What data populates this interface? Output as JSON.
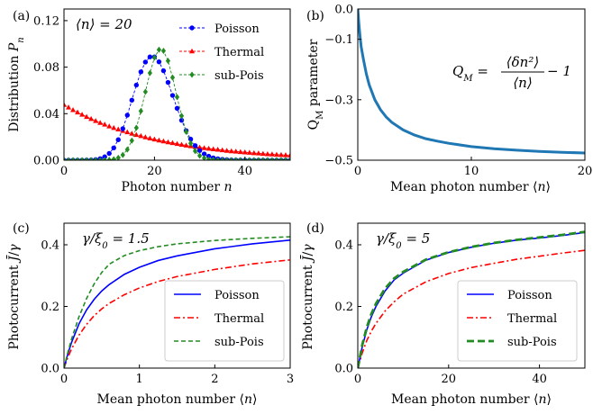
{
  "chart_data": [
    {
      "panel": "(a)",
      "type": "line",
      "xlabel": "Photon number n",
      "ylabel": "Distribution P_n",
      "xlim": [
        0,
        50
      ],
      "ylim": [
        0,
        0.13
      ],
      "xticks": [
        "0",
        "20",
        "40"
      ],
      "yticks": [
        "0.00",
        "0.04",
        "0.08",
        "0.12"
      ],
      "annotation": "⟨n⟩ = 20",
      "legend_position": "top-right",
      "mean_n": 20,
      "x": [
        0,
        1,
        2,
        3,
        4,
        5,
        6,
        7,
        8,
        9,
        10,
        11,
        12,
        13,
        14,
        15,
        16,
        17,
        18,
        19,
        20,
        21,
        22,
        23,
        24,
        25,
        26,
        27,
        28,
        29,
        30,
        31,
        32,
        33,
        34,
        35,
        36,
        37,
        38,
        39,
        40,
        41,
        42,
        43,
        44,
        45,
        46,
        47,
        48,
        49,
        50
      ],
      "series": [
        {
          "name": "Poisson",
          "color": "#0000ff",
          "marker": "circle",
          "line": "dashed",
          "values": [
            0,
            0,
            0,
            0,
            0,
            0.0001,
            0.0002,
            0.0005,
            0.0013,
            0.0029,
            0.0058,
            0.0106,
            0.0176,
            0.0271,
            0.0387,
            0.0516,
            0.0646,
            0.076,
            0.0844,
            0.0888,
            0.0888,
            0.0846,
            0.0769,
            0.0669,
            0.0557,
            0.0446,
            0.0343,
            0.0254,
            0.0181,
            0.0125,
            0.0083,
            0.0054,
            0.0034,
            0.002,
            0.0012,
            0.0007,
            0.0004,
            0.0002,
            0.0001,
            0.0001,
            0,
            0,
            0,
            0,
            0,
            0,
            0,
            0,
            0,
            0,
            0
          ]
        },
        {
          "name": "Thermal",
          "color": "#ff0000",
          "marker": "triangle",
          "line": "dashed",
          "values": [
            0.0476,
            0.0454,
            0.0432,
            0.0411,
            0.0392,
            0.0373,
            0.0355,
            0.0338,
            0.0322,
            0.0307,
            0.0292,
            0.0278,
            0.0265,
            0.0253,
            0.0241,
            0.0229,
            0.0218,
            0.0208,
            0.0198,
            0.0188,
            0.0179,
            0.0171,
            0.0163,
            0.0155,
            0.0148,
            0.0141,
            0.0134,
            0.0127,
            0.0121,
            0.0116,
            0.011,
            0.0105,
            0.01,
            0.0095,
            0.0091,
            0.0086,
            0.0082,
            0.0078,
            0.0075,
            0.0071,
            0.0068,
            0.0065,
            0.0061,
            0.0059,
            0.0056,
            0.0053,
            0.0051,
            0.0048,
            0.0046,
            0.0044,
            0.0042
          ]
        },
        {
          "name": "sub-Pois",
          "color": "#228b22",
          "marker": "diamond",
          "line": "dashed",
          "values": [
            0,
            0,
            0,
            0,
            0,
            0,
            0,
            0,
            0,
            0.0001,
            0.0003,
            0.0008,
            0.002,
            0.0045,
            0.0092,
            0.0168,
            0.0279,
            0.0423,
            0.0588,
            0.075,
            0.0882,
            0.095,
            0.094,
            0.0854,
            0.0711,
            0.0543,
            0.0381,
            0.0245,
            0.0145,
            0.0078,
            0.0039,
            0.0018,
            0.0007,
            0.0003,
            0.0001,
            0,
            0,
            0,
            0,
            0,
            0,
            0,
            0,
            0,
            0,
            0,
            0,
            0,
            0,
            0,
            0
          ]
        }
      ]
    },
    {
      "panel": "(b)",
      "type": "line",
      "xlabel": "Mean photon number ⟨n⟩",
      "ylabel": "Q_M parameter",
      "xlim": [
        0,
        20
      ],
      "ylim": [
        -0.5,
        0
      ],
      "xticks": [
        "0",
        "10",
        "20"
      ],
      "yticks": [
        "−0.5",
        "−0.3",
        "−0.1",
        "0.0"
      ],
      "formula": {
        "lhs": "Q",
        "sub": "M",
        "num": "⟨δn²⟩",
        "den": "⟨n⟩",
        "tail": "− 1"
      },
      "series": [
        {
          "name": "",
          "color": "#1f77b4",
          "x": [
            0,
            0.1,
            0.2,
            0.3,
            0.5,
            0.75,
            1,
            1.5,
            2,
            2.5,
            3,
            4,
            5,
            6,
            7,
            8,
            10,
            12,
            14,
            16,
            18,
            20
          ],
          "values": [
            0,
            -0.05,
            -0.091,
            -0.125,
            -0.167,
            -0.214,
            -0.25,
            -0.3,
            -0.333,
            -0.357,
            -0.375,
            -0.4,
            -0.417,
            -0.429,
            -0.437,
            -0.444,
            -0.455,
            -0.462,
            -0.467,
            -0.471,
            -0.474,
            -0.476
          ]
        }
      ]
    },
    {
      "panel": "(c)",
      "type": "line",
      "xlabel": "Mean photon number ⟨n⟩",
      "ylabel": "Photocurrent J̄/γ",
      "xlim": [
        0,
        3
      ],
      "ylim": [
        0,
        0.47
      ],
      "xticks": [
        "0",
        "1",
        "2",
        "3"
      ],
      "yticks": [
        "0.0",
        "0.2",
        "0.4"
      ],
      "annotation": "γ/ξ₀ = 1.5",
      "legend_position": "lower-right",
      "x": [
        0,
        0.05,
        0.1,
        0.2,
        0.3,
        0.4,
        0.5,
        0.6,
        0.8,
        1,
        1.25,
        1.5,
        2,
        2.5,
        3
      ],
      "series": [
        {
          "name": "Poisson",
          "color": "#0000ff",
          "line": "solid",
          "values": [
            0,
            0.045,
            0.083,
            0.144,
            0.189,
            0.223,
            0.25,
            0.271,
            0.304,
            0.327,
            0.349,
            0.364,
            0.387,
            0.403,
            0.415
          ]
        },
        {
          "name": "Thermal",
          "color": "#ff0000",
          "line": "dashdot",
          "values": [
            0,
            0.034,
            0.062,
            0.107,
            0.142,
            0.17,
            0.192,
            0.21,
            0.238,
            0.26,
            0.281,
            0.297,
            0.32,
            0.338,
            0.351
          ]
        },
        {
          "name": "sub-Pois",
          "color": "#228b22",
          "line": "dashed",
          "values": [
            0,
            0.05,
            0.094,
            0.167,
            0.226,
            0.273,
            0.31,
            0.337,
            0.365,
            0.381,
            0.394,
            0.403,
            0.414,
            0.421,
            0.426
          ]
        }
      ]
    },
    {
      "panel": "(d)",
      "type": "line",
      "xlabel": "Mean photon number ⟨n⟩",
      "ylabel": "Photocurrent J̄/γ",
      "xlim": [
        0,
        50
      ],
      "ylim": [
        0,
        0.47
      ],
      "xticks": [
        "0",
        "20",
        "40"
      ],
      "yticks": [
        "0.0",
        "0.2",
        "0.4"
      ],
      "annotation": "γ/ξ₀ = 5",
      "legend_position": "lower-right",
      "x": [
        0,
        1,
        2,
        3,
        4,
        6,
        8,
        10,
        15,
        20,
        25,
        30,
        35,
        40,
        45,
        50
      ],
      "series": [
        {
          "name": "Poisson",
          "color": "#0000ff",
          "line": "solid",
          "values": [
            0,
            0.07,
            0.125,
            0.167,
            0.2,
            0.25,
            0.286,
            0.308,
            0.35,
            0.375,
            0.392,
            0.405,
            0.415,
            0.422,
            0.43,
            0.44
          ]
        },
        {
          "name": "Thermal",
          "color": "#ff0000",
          "line": "dashdot",
          "values": [
            0,
            0.05,
            0.09,
            0.12,
            0.145,
            0.185,
            0.215,
            0.24,
            0.28,
            0.307,
            0.326,
            0.34,
            0.353,
            0.363,
            0.373,
            0.382
          ]
        },
        {
          "name": "sub-Pois",
          "color": "#228b22",
          "line": "dashed-thick",
          "values": [
            0,
            0.076,
            0.133,
            0.176,
            0.209,
            0.258,
            0.291,
            0.312,
            0.352,
            0.376,
            0.393,
            0.406,
            0.416,
            0.424,
            0.432,
            0.442
          ]
        }
      ]
    }
  ]
}
